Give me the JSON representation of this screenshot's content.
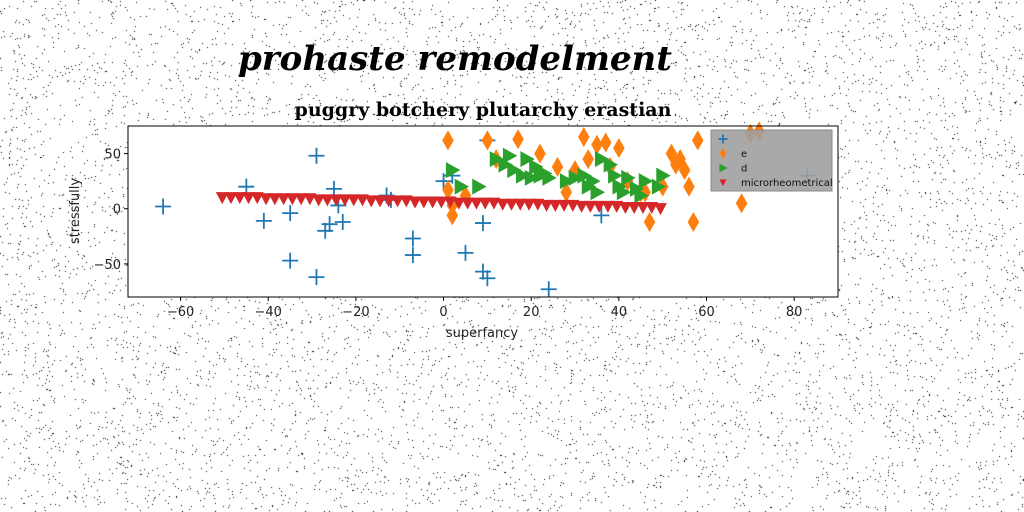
{
  "title": "prohaste remodelment",
  "chart_data": {
    "type": "scatter",
    "title": "puggry botchery plutarchy erastian",
    "xlabel": "superfancy",
    "ylabel": "stressfully",
    "xlim": [
      -72,
      90
    ],
    "ylim": [
      -80,
      75
    ],
    "xticks": [
      -60,
      -40,
      -20,
      0,
      20,
      40,
      60,
      80
    ],
    "yticks": [
      -50,
      0,
      50
    ],
    "grid": false,
    "legend_position": "top-right",
    "series": [
      {
        "name": "",
        "marker": "plus",
        "color": "#1f77b4",
        "points": [
          [
            -64,
            2
          ],
          [
            -45,
            20
          ],
          [
            -41,
            -11
          ],
          [
            -35,
            -4
          ],
          [
            -35,
            -47
          ],
          [
            -29,
            48
          ],
          [
            -29,
            -62
          ],
          [
            -27,
            -20
          ],
          [
            -26,
            -14
          ],
          [
            -25,
            18
          ],
          [
            -24,
            3
          ],
          [
            -23,
            -12
          ],
          [
            -13,
            12
          ],
          [
            -12,
            8
          ],
          [
            -7,
            -27
          ],
          [
            -7,
            -42
          ],
          [
            0,
            25
          ],
          [
            2,
            30
          ],
          [
            9,
            -13
          ],
          [
            9,
            -57
          ],
          [
            10,
            -63
          ],
          [
            5,
            -40
          ],
          [
            10,
            62
          ],
          [
            24,
            -73
          ],
          [
            36,
            -6
          ],
          [
            41,
            20
          ],
          [
            83,
            30
          ]
        ]
      },
      {
        "name": "e",
        "marker": "diamond",
        "color": "#ff7f0e",
        "points": [
          [
            1,
            62
          ],
          [
            1,
            17
          ],
          [
            2,
            3
          ],
          [
            2,
            -6
          ],
          [
            5,
            12
          ],
          [
            10,
            62
          ],
          [
            12,
            45
          ],
          [
            17,
            63
          ],
          [
            22,
            50
          ],
          [
            26,
            38
          ],
          [
            28,
            15
          ],
          [
            30,
            35
          ],
          [
            32,
            65
          ],
          [
            33,
            45
          ],
          [
            35,
            58
          ],
          [
            37,
            60
          ],
          [
            38,
            38
          ],
          [
            40,
            55
          ],
          [
            42,
            25
          ],
          [
            45,
            15
          ],
          [
            46,
            15
          ],
          [
            47,
            -12
          ],
          [
            50,
            20
          ],
          [
            52,
            50
          ],
          [
            53,
            40
          ],
          [
            54,
            45
          ],
          [
            55,
            35
          ],
          [
            56,
            20
          ],
          [
            57,
            -12
          ],
          [
            58,
            62
          ],
          [
            68,
            5
          ],
          [
            70,
            68
          ],
          [
            72,
            70
          ]
        ]
      },
      {
        "name": "d",
        "marker": "triangle-right",
        "color": "#2ca02c",
        "points": [
          [
            2,
            35
          ],
          [
            4,
            20
          ],
          [
            8,
            20
          ],
          [
            12,
            45
          ],
          [
            14,
            40
          ],
          [
            15,
            48
          ],
          [
            16,
            35
          ],
          [
            18,
            30
          ],
          [
            19,
            45
          ],
          [
            20,
            28
          ],
          [
            21,
            38
          ],
          [
            22,
            30
          ],
          [
            23,
            32
          ],
          [
            24,
            28
          ],
          [
            28,
            25
          ],
          [
            30,
            28
          ],
          [
            32,
            30
          ],
          [
            33,
            20
          ],
          [
            34,
            25
          ],
          [
            35,
            15
          ],
          [
            36,
            45
          ],
          [
            38,
            40
          ],
          [
            39,
            30
          ],
          [
            40,
            20
          ],
          [
            41,
            15
          ],
          [
            42,
            28
          ],
          [
            44,
            18
          ],
          [
            45,
            12
          ],
          [
            46,
            25
          ],
          [
            49,
            20
          ],
          [
            50,
            30
          ]
        ]
      },
      {
        "name": "microrheometrical",
        "marker": "triangle-down",
        "color": "#d62728",
        "points": [
          [
            -50.5,
            10
          ],
          [
            -48.5,
            10
          ],
          [
            -46.5,
            10
          ],
          [
            -44.5,
            10
          ],
          [
            -42.5,
            10
          ],
          [
            -40.5,
            9
          ],
          [
            -38.5,
            9
          ],
          [
            -36.5,
            9
          ],
          [
            -34.5,
            9
          ],
          [
            -32.5,
            9
          ],
          [
            -30.5,
            9
          ],
          [
            -28.5,
            8
          ],
          [
            -26.5,
            8
          ],
          [
            -24.5,
            8
          ],
          [
            -22.5,
            8
          ],
          [
            -20.5,
            8
          ],
          [
            -18.5,
            8
          ],
          [
            -16.5,
            7
          ],
          [
            -14.5,
            7
          ],
          [
            -12.5,
            7
          ],
          [
            -10.5,
            7
          ],
          [
            -8.5,
            7
          ],
          [
            -6.5,
            6
          ],
          [
            -4.5,
            6
          ],
          [
            -2.5,
            6
          ],
          [
            -0.5,
            6
          ],
          [
            1.5,
            6
          ],
          [
            3.5,
            5
          ],
          [
            5.5,
            5
          ],
          [
            7.5,
            5
          ],
          [
            9.5,
            5
          ],
          [
            11.5,
            5
          ],
          [
            13.5,
            4
          ],
          [
            15.5,
            4
          ],
          [
            17.5,
            4
          ],
          [
            19.5,
            4
          ],
          [
            21.5,
            4
          ],
          [
            23.5,
            3
          ],
          [
            25.5,
            3
          ],
          [
            27.5,
            3
          ],
          [
            29.5,
            3
          ],
          [
            31.5,
            2
          ],
          [
            33.5,
            2
          ],
          [
            35.5,
            2
          ],
          [
            37.5,
            2
          ],
          [
            39.5,
            2
          ],
          [
            41.5,
            1
          ],
          [
            43.5,
            1
          ],
          [
            45.5,
            1
          ],
          [
            47.5,
            1
          ],
          [
            49.5,
            0
          ]
        ]
      }
    ]
  }
}
